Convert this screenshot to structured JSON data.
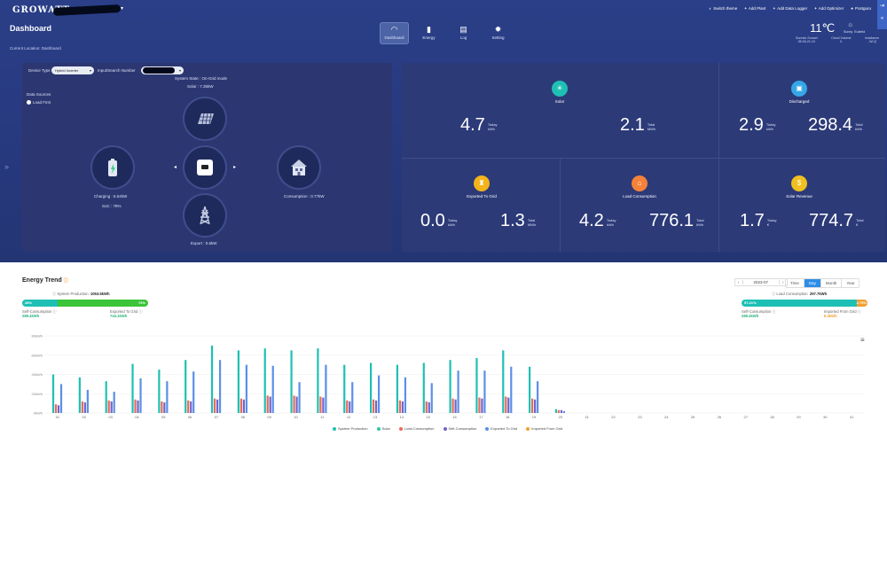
{
  "header": {
    "brand": "GROWATT",
    "title": "Dashboard",
    "location": "Current Location: Dashboard"
  },
  "nav": [
    {
      "label": "Dashboard",
      "icon": "gauge-icon",
      "glyph": "◠"
    },
    {
      "label": "Energy",
      "icon": "bar-chart-icon",
      "glyph": "▮"
    },
    {
      "label": "Log",
      "icon": "document-icon",
      "glyph": "▤"
    },
    {
      "label": "Setting",
      "icon": "gear-icon",
      "glyph": "✹"
    }
  ],
  "top_links": [
    {
      "label": "Switch theme",
      "icon": "theme-icon",
      "glyph": "◐"
    },
    {
      "label": "Add Plant",
      "icon": "plus-icon",
      "glyph": "+"
    },
    {
      "label": "Add Data Logger",
      "icon": "plus-icon",
      "glyph": "+"
    },
    {
      "label": "Add Optimizer",
      "icon": "plus-icon",
      "glyph": "+"
    },
    {
      "label": "Postguru",
      "icon": "user-icon",
      "glyph": "●"
    }
  ],
  "weather": {
    "temp": "11℃",
    "condition": "Sunny",
    "place": "Euxfeld",
    "sunrise_label": "Sunrise-Sunset",
    "sunrise_value": "05:28-21:19",
    "cloud_label": "Cloud Volume",
    "cloud_value": "0",
    "irr_label": "Irradiance",
    "irr_value": "- W/㎡"
  },
  "device": {
    "type_label": "Device Type",
    "type_value": "Hybrid Inverter",
    "search_label": "Input/Search Number",
    "system_state": "System State : On-Grid mode",
    "solar_power": "Solar : 7.35kW",
    "data_sources": "Data Sources",
    "load_first": "Load First",
    "charging": "Charging : 6.54kW",
    "soc": "SoC : 78%",
    "consumption": "Consumption : 0.77kW",
    "export": "Export : 0.6kW"
  },
  "stats": [
    {
      "title": "Solar",
      "icon": "sun-icon",
      "glyph": "☀",
      "color": "#1ec0b4",
      "today": "4.7",
      "today_label": "Today",
      "today_unit": "kWh",
      "total": "2.1",
      "total_label": "Total",
      "total_unit": "MWh"
    },
    {
      "title": "Discharged",
      "icon": "battery-icon",
      "glyph": "▣",
      "color": "#35a7e6",
      "today": "2.9",
      "today_label": "Today",
      "today_unit": "kWh",
      "total": "298.4",
      "total_label": "Total",
      "total_unit": "kWh"
    },
    {
      "title": "Exported To Grid",
      "icon": "tower-icon",
      "glyph": "♜",
      "color": "#f3b41b",
      "today": "0.0",
      "today_label": "Today",
      "today_unit": "kWh",
      "total": "1.3",
      "total_label": "Total",
      "total_unit": "MWh"
    },
    {
      "title": "Load Consumption",
      "icon": "home-icon",
      "glyph": "⌂",
      "color": "#f5823a",
      "today": "4.2",
      "today_label": "Today",
      "today_unit": "kWh",
      "total": "776.1",
      "total_label": "Total",
      "total_unit": "kWh"
    },
    {
      "title": "Solar Revenue",
      "icon": "money-icon",
      "glyph": "$",
      "color": "#f0c020",
      "today": "1.7",
      "today_label": "Today",
      "today_unit": "€",
      "total": "774.7",
      "total_label": "Total",
      "total_unit": "€"
    }
  ],
  "trend": {
    "title": "Energy Trend",
    "sys_prod_label": "System Production",
    "sys_prod_value": "1053.5kWh",
    "left_pct_a": "28%",
    "left_pct_b": "72%",
    "left_frac": 0.28,
    "self_cons_label": "Self-Consumption",
    "self_cons_value": "289.4kWh",
    "exported_label": "Exported To Grid",
    "exported_value": "744.1kWh",
    "load_label": "Load Consumption",
    "load_value": "297.7kWh",
    "right_pct_a": "97.21%",
    "right_pct_b": "2.79%",
    "right_frac": 0.9721,
    "self_cons2_value": "289.4kWh",
    "imported_label": "Imported From Grid",
    "imported_value": "8.3kWh",
    "date": "2023-07",
    "tabs": [
      "Time",
      "Day",
      "Month",
      "Year"
    ],
    "active_tab": "Day",
    "menu_icon": "≡"
  },
  "chart_data": {
    "type": "bar",
    "categories": [
      "01",
      "02",
      "03",
      "04",
      "05",
      "06",
      "07",
      "08",
      "09",
      "10",
      "11",
      "12",
      "13",
      "14",
      "15",
      "16",
      "17",
      "18",
      "19",
      "20",
      "21",
      "22",
      "23",
      "24",
      "25",
      "26",
      "27",
      "28",
      "29",
      "30",
      "31"
    ],
    "y_ticks": [
      "0kWh",
      "20kWh",
      "40kWh",
      "60kWh",
      "80kWh"
    ],
    "ylim": [
      0,
      80
    ],
    "series": [
      {
        "name": "System Production",
        "color": "#1ec0b4",
        "values": [
          40,
          37,
          33,
          51,
          45,
          55,
          70,
          65,
          67,
          65,
          67,
          50,
          52,
          50,
          52,
          55,
          57,
          65,
          48,
          4,
          0,
          0,
          0,
          0,
          0,
          0,
          0,
          0,
          0,
          0,
          0
        ]
      },
      {
        "name": "Solar",
        "color": "#2fc8a6",
        "values": [
          41,
          38,
          34,
          52,
          46,
          56,
          71,
          66,
          68,
          66,
          68,
          51,
          53,
          51,
          53,
          56,
          58,
          66,
          49,
          4,
          0,
          0,
          0,
          0,
          0,
          0,
          0,
          0,
          0,
          0,
          0
        ]
      },
      {
        "name": "Load Consumption",
        "color": "#e66b5c",
        "values": [
          9,
          12,
          13,
          14,
          12,
          13,
          15,
          15,
          18,
          18,
          17,
          13,
          14,
          13,
          12,
          15,
          16,
          17,
          15,
          3,
          0,
          0,
          0,
          0,
          0,
          0,
          0,
          0,
          0,
          0,
          0
        ]
      },
      {
        "name": "Self-Consumption",
        "color": "#6f66c8",
        "values": [
          8,
          11,
          12,
          13,
          11,
          12,
          14,
          14,
          17,
          17,
          16,
          12,
          13,
          12,
          11,
          14,
          15,
          16,
          14,
          3,
          0,
          0,
          0,
          0,
          0,
          0,
          0,
          0,
          0,
          0,
          0
        ]
      },
      {
        "name": "Exported To Grid",
        "color": "#5b8fe8",
        "values": [
          30,
          24,
          22,
          36,
          33,
          43,
          55,
          50,
          49,
          32,
          50,
          32,
          39,
          37,
          31,
          44,
          44,
          48,
          33,
          2,
          0,
          0,
          0,
          0,
          0,
          0,
          0,
          0,
          0,
          0,
          0
        ]
      },
      {
        "name": "Imported From Grid",
        "color": "#f0a030",
        "values": [
          0,
          0,
          0,
          0,
          0,
          0,
          0,
          0,
          0,
          0,
          0,
          0,
          0,
          0,
          0,
          0,
          0,
          0,
          0,
          0,
          0,
          0,
          0,
          0,
          0,
          0,
          0,
          0,
          0,
          0,
          0
        ]
      }
    ],
    "grid": true,
    "legend": "bottom"
  }
}
